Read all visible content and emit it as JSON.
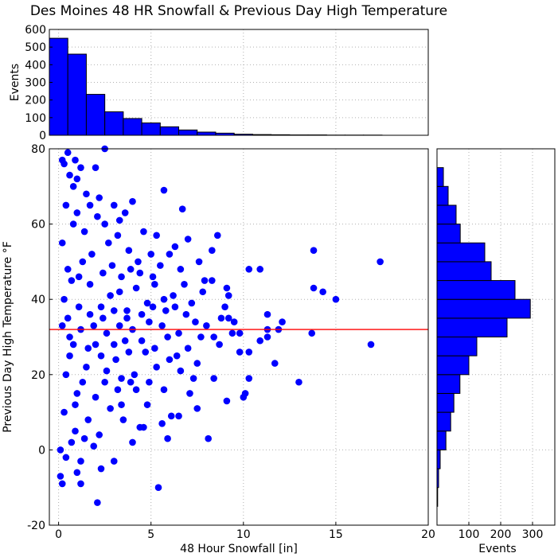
{
  "title": "Des Moines 48 HR Snowfall & Previous Day High Temperature",
  "colors": {
    "bar": "#0000ff",
    "marker": "#0000ff",
    "ref_line": "#ff0000",
    "grid": "#b0b0b0"
  },
  "chart_data": [
    {
      "id": "snowfall-histogram",
      "type": "bar",
      "ylabel": "Events",
      "xlim": [
        -0.5,
        20
      ],
      "ylim": [
        0,
        600
      ],
      "yticks": [
        0,
        100,
        200,
        300,
        400,
        500,
        600
      ],
      "bin_width": 1,
      "bin_edges": [
        -0.5,
        0.5,
        1.5,
        2.5,
        3.5,
        4.5,
        5.5,
        6.5,
        7.5,
        8.5,
        9.5,
        10.5,
        11.5,
        12.5,
        13.5,
        14.5,
        15.5,
        16.5,
        17.5
      ],
      "values": [
        550,
        460,
        232,
        133,
        95,
        70,
        48,
        30,
        18,
        12,
        6,
        4,
        3,
        2,
        2,
        1,
        1,
        1
      ],
      "grid": true
    },
    {
      "id": "scatter",
      "type": "scatter",
      "xlabel": "48 Hour Snowfall [in]",
      "ylabel": "Previous Day High Temperature °F",
      "xlim": [
        -0.5,
        20
      ],
      "ylim": [
        -20,
        80
      ],
      "xticks": [
        0,
        5,
        10,
        15,
        20
      ],
      "yticks": [
        -20,
        0,
        20,
        40,
        60,
        80
      ],
      "reference_line_y": 32,
      "grid": true,
      "points": [
        [
          0.5,
          79
        ],
        [
          2.5,
          80
        ],
        [
          0.3,
          76
        ],
        [
          0.6,
          73
        ],
        [
          1.2,
          75
        ],
        [
          2.0,
          75
        ],
        [
          4.0,
          66
        ],
        [
          5.7,
          69
        ],
        [
          6.7,
          64
        ],
        [
          0.8,
          70
        ],
        [
          1.5,
          68
        ],
        [
          2.2,
          67
        ],
        [
          3.0,
          65
        ],
        [
          3.6,
          63
        ],
        [
          1.0,
          72
        ],
        [
          0.2,
          77
        ],
        [
          0.9,
          77
        ],
        [
          4.6,
          58
        ],
        [
          5.3,
          57
        ],
        [
          6.3,
          54
        ],
        [
          7.0,
          56
        ],
        [
          8.6,
          57
        ],
        [
          8.3,
          53
        ],
        [
          7.6,
          50
        ],
        [
          6.6,
          48
        ],
        [
          7.9,
          45
        ],
        [
          8.3,
          45
        ],
        [
          9.2,
          41
        ],
        [
          9.1,
          43
        ],
        [
          9.0,
          38
        ],
        [
          8.8,
          35
        ],
        [
          9.2,
          35
        ],
        [
          9.5,
          34
        ],
        [
          9.4,
          31
        ],
        [
          9.8,
          31
        ],
        [
          8.4,
          30
        ],
        [
          8.7,
          28
        ],
        [
          10.3,
          48
        ],
        [
          10.9,
          48
        ],
        [
          11.3,
          36
        ],
        [
          11.3,
          32
        ],
        [
          11.9,
          32
        ],
        [
          11.3,
          30
        ],
        [
          10.9,
          29
        ],
        [
          12.1,
          34
        ],
        [
          11.7,
          23
        ],
        [
          10.3,
          26
        ],
        [
          9.8,
          26
        ],
        [
          10.3,
          19
        ],
        [
          10.1,
          15
        ],
        [
          10.0,
          14
        ],
        [
          9.1,
          13
        ],
        [
          8.4,
          19
        ],
        [
          8.1,
          3
        ],
        [
          7.5,
          11
        ],
        [
          7.1,
          15
        ],
        [
          5.6,
          7
        ],
        [
          6.5,
          9
        ],
        [
          6.1,
          9
        ],
        [
          5.9,
          3
        ],
        [
          4.6,
          6
        ],
        [
          4.4,
          6
        ],
        [
          4.8,
          12
        ],
        [
          3.9,
          18
        ],
        [
          3.4,
          12
        ],
        [
          3.2,
          16
        ],
        [
          3.0,
          -3
        ],
        [
          2.3,
          -5
        ],
        [
          1.2,
          -3
        ],
        [
          1.0,
          -6
        ],
        [
          0.1,
          -7
        ],
        [
          0.2,
          -9
        ],
        [
          1.2,
          -9
        ],
        [
          0.4,
          -2
        ],
        [
          5.4,
          -10
        ],
        [
          2.1,
          -14
        ],
        [
          13.0,
          18
        ],
        [
          13.7,
          31
        ],
        [
          15.0,
          40
        ],
        [
          14.3,
          42
        ],
        [
          13.8,
          43
        ],
        [
          13.8,
          53
        ],
        [
          16.9,
          28
        ],
        [
          17.4,
          50
        ],
        [
          0.3,
          40
        ],
        [
          0.5,
          35
        ],
        [
          0.7,
          45
        ],
        [
          1.3,
          50
        ],
        [
          1.7,
          44
        ],
        [
          2.3,
          38
        ],
        [
          2.8,
          41
        ],
        [
          3.3,
          42
        ],
        [
          3.7,
          37
        ],
        [
          4.2,
          43
        ],
        [
          4.8,
          39
        ],
        [
          5.2,
          44
        ],
        [
          5.8,
          37
        ],
        [
          6.2,
          41
        ],
        [
          6.8,
          44
        ],
        [
          7.2,
          39
        ],
        [
          7.8,
          42
        ],
        [
          0.4,
          20
        ],
        [
          0.6,
          25
        ],
        [
          1.0,
          15
        ],
        [
          1.5,
          22
        ],
        [
          2.0,
          28
        ],
        [
          2.5,
          18
        ],
        [
          3.1,
          24
        ],
        [
          3.6,
          29
        ],
        [
          4.1,
          20
        ],
        [
          4.7,
          26
        ],
        [
          5.3,
          22
        ],
        [
          5.9,
          30
        ],
        [
          6.4,
          25
        ],
        [
          7.0,
          27
        ],
        [
          7.5,
          23
        ],
        [
          8.0,
          33
        ],
        [
          0.2,
          55
        ],
        [
          0.8,
          60
        ],
        [
          1.4,
          58
        ],
        [
          2.1,
          62
        ],
        [
          2.7,
          55
        ],
        [
          3.2,
          57
        ],
        [
          3.8,
          53
        ],
        [
          4.3,
          50
        ],
        [
          5.0,
          52
        ],
        [
          5.5,
          49
        ],
        [
          6.0,
          52
        ],
        [
          0.3,
          10
        ],
        [
          0.9,
          5
        ],
        [
          1.6,
          8
        ],
        [
          2.2,
          4
        ],
        [
          2.8,
          11
        ],
        [
          3.5,
          8
        ],
        [
          4.0,
          2
        ],
        [
          0.1,
          0
        ],
        [
          0.7,
          2
        ],
        [
          1.4,
          3
        ],
        [
          1.9,
          1
        ],
        [
          0.5,
          48
        ],
        [
          1.1,
          46
        ],
        [
          1.8,
          52
        ],
        [
          2.4,
          47
        ],
        [
          2.9,
          49
        ],
        [
          3.4,
          46
        ],
        [
          3.9,
          48
        ],
        [
          4.4,
          47
        ],
        [
          5.1,
          46
        ],
        [
          6.9,
          36
        ],
        [
          7.4,
          34
        ],
        [
          7.7,
          30
        ],
        [
          6.5,
          31
        ],
        [
          5.6,
          33
        ],
        [
          4.9,
          34
        ],
        [
          4.0,
          32
        ],
        [
          3.3,
          33
        ],
        [
          2.6,
          31
        ],
        [
          1.9,
          33
        ],
        [
          1.2,
          32
        ],
        [
          0.6,
          30
        ],
        [
          0.2,
          33
        ],
        [
          1.1,
          38
        ],
        [
          1.7,
          36
        ],
        [
          2.4,
          35
        ],
        [
          3.0,
          37
        ],
        [
          3.7,
          35
        ],
        [
          4.5,
          36
        ],
        [
          5.1,
          38
        ],
        [
          5.7,
          40
        ],
        [
          6.3,
          38
        ],
        [
          0.8,
          28
        ],
        [
          1.6,
          27
        ],
        [
          2.3,
          25
        ],
        [
          3.0,
          28
        ],
        [
          3.8,
          26
        ],
        [
          4.5,
          29
        ],
        [
          5.2,
          27
        ],
        [
          6.0,
          24
        ],
        [
          6.6,
          21
        ],
        [
          7.3,
          19
        ],
        [
          0.4,
          65
        ],
        [
          1.0,
          63
        ],
        [
          1.7,
          65
        ],
        [
          2.5,
          60
        ],
        [
          3.3,
          61
        ],
        [
          0.9,
          12
        ],
        [
          1.3,
          18
        ],
        [
          2.0,
          14
        ],
        [
          2.6,
          21
        ],
        [
          3.4,
          19
        ],
        [
          4.2,
          16
        ],
        [
          4.9,
          18
        ],
        [
          5.7,
          16
        ]
      ]
    },
    {
      "id": "temperature-histogram",
      "type": "bar",
      "orientation": "horizontal",
      "xlabel": "Events",
      "xlim": [
        0,
        370
      ],
      "xticks": [
        100,
        200,
        300
      ],
      "bin_edges": [
        -15,
        -10,
        -5,
        0,
        5,
        10,
        15,
        20,
        25,
        30,
        35,
        40,
        45,
        50,
        55,
        60,
        65,
        70,
        75
      ],
      "values": [
        2,
        5,
        10,
        28,
        43,
        53,
        72,
        100,
        125,
        220,
        293,
        245,
        170,
        150,
        73,
        60,
        35,
        20
      ],
      "grid": true
    }
  ]
}
